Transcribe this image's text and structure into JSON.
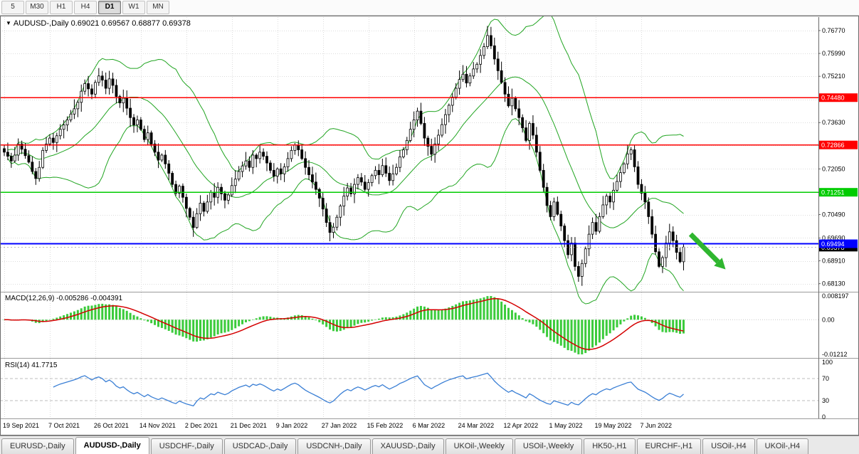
{
  "toolbar": {
    "timeframes": [
      "5",
      "M30",
      "H1",
      "H4",
      "D1",
      "W1",
      "MN"
    ],
    "active": "D1"
  },
  "chart_data": {
    "type": "candlestick",
    "symbol": "AUDUSD-,Daily",
    "ohlc_line": "0.69021 0.69567 0.68877 0.69378",
    "x_labels": [
      "19 Sep 2021",
      "7 Oct 2021",
      "26 Oct 2021",
      "14 Nov 2021",
      "2 Dec 2021",
      "21 Dec 2021",
      "9 Jan 2022",
      "27 Jan 2022",
      "15 Feb 2022",
      "6 Mar 2022",
      "24 Mar 2022",
      "12 Apr 2022",
      "1 May 2022",
      "19 May 2022",
      "7 Jun 2022"
    ],
    "candles_per_label": 13,
    "y_ticks": [
      "0.76770",
      "0.75990",
      "0.75210",
      "0.74410",
      "0.73630",
      "0.72850",
      "0.72050",
      "0.71250",
      "0.70490",
      "0.69690",
      "0.68910",
      "0.68130"
    ],
    "y_range": [
      0.6788,
      0.7723
    ],
    "closes": [
      0.7262,
      0.7248,
      0.7232,
      0.7252,
      0.729,
      0.7272,
      0.725,
      0.7228,
      0.7196,
      0.7172,
      0.721,
      0.7268,
      0.729,
      0.731,
      0.7295,
      0.7318,
      0.734,
      0.7355,
      0.7372,
      0.7392,
      0.741,
      0.7432,
      0.747,
      0.7496,
      0.7478,
      0.746,
      0.75,
      0.7522,
      0.7508,
      0.748,
      0.7512,
      0.749,
      0.7452,
      0.743,
      0.7446,
      0.7412,
      0.738,
      0.7355,
      0.7372,
      0.734,
      0.7305,
      0.7328,
      0.729,
      0.7262,
      0.7235,
      0.7252,
      0.7222,
      0.719,
      0.7152,
      0.7122,
      0.7146,
      0.7108,
      0.707,
      0.704,
      0.7005,
      0.7052,
      0.7088,
      0.706,
      0.7092,
      0.7125,
      0.7108,
      0.7142,
      0.712,
      0.7098,
      0.7116,
      0.7148,
      0.717,
      0.7196,
      0.7215,
      0.7232,
      0.721,
      0.7252,
      0.724,
      0.7262,
      0.7248,
      0.7225,
      0.72,
      0.718,
      0.7205,
      0.7188,
      0.7212,
      0.724,
      0.7268,
      0.7286,
      0.727,
      0.724,
      0.721,
      0.7185,
      0.716,
      0.7135,
      0.7105,
      0.7068,
      0.7022,
      0.6988,
      0.7006,
      0.704,
      0.7078,
      0.7112,
      0.714,
      0.712,
      0.7152,
      0.7175,
      0.716,
      0.7135,
      0.7158,
      0.7182,
      0.72,
      0.7185,
      0.7216,
      0.719,
      0.7165,
      0.7188,
      0.721,
      0.7246,
      0.727,
      0.7302,
      0.734,
      0.7372,
      0.7402,
      0.736,
      0.731,
      0.7282,
      0.7255,
      0.729,
      0.732,
      0.7356,
      0.739,
      0.7422,
      0.745,
      0.748,
      0.751,
      0.7528,
      0.7498,
      0.7522,
      0.7546,
      0.7562,
      0.7592,
      0.7622,
      0.766,
      0.7625,
      0.758,
      0.754,
      0.75,
      0.746,
      0.742,
      0.7446,
      0.741,
      0.738,
      0.7345,
      0.7302,
      0.736,
      0.732,
      0.7262,
      0.72,
      0.7142,
      0.708,
      0.7042,
      0.7092,
      0.705,
      0.701,
      0.696,
      0.6912,
      0.6952,
      0.6872,
      0.6838,
      0.6882,
      0.6932,
      0.6982,
      0.7022,
      0.6992,
      0.7042,
      0.7082,
      0.7112,
      0.7092,
      0.7132,
      0.7162,
      0.7192,
      0.7222,
      0.7256,
      0.727,
      0.7212,
      0.7152,
      0.7122,
      0.7092,
      0.7042,
      0.6982,
      0.6922,
      0.6872,
      0.6902,
      0.6952,
      0.699,
      0.696,
      0.692,
      0.6888,
      0.6938
    ],
    "h_lines": [
      {
        "price": 0.7448,
        "label": "0.74480",
        "color": "#ff0000"
      },
      {
        "price": 0.72866,
        "label": "0.72866",
        "color": "#ff0000"
      },
      {
        "price": 0.71251,
        "label": "0.71251",
        "color": "#00cc00"
      },
      {
        "price": 0.69494,
        "label": "0.69494",
        "color": "#0000ff"
      }
    ],
    "bid": {
      "price": 0.69378,
      "label": "0.69378"
    },
    "bollinger": {
      "period": 20,
      "deviation": 2,
      "color": "#22a522"
    },
    "annotation": {
      "type": "arrow",
      "from_index": 196,
      "from_price": 0.6982,
      "to_index": 206,
      "to_price": 0.6862,
      "color": "#2fb62f"
    },
    "macd": {
      "label": "MACD(12,26,9)",
      "values_text": "-0.005286 -0.004391",
      "fast": 12,
      "slow": 26,
      "signal": 9,
      "axis_labels": [
        "0.008197",
        "0.00",
        "-0.01212"
      ],
      "hist_color": "#3bcb3b",
      "signal_color": "#d40000"
    },
    "rsi": {
      "label": "RSI(14)",
      "value_text": "41.7715",
      "period": 14,
      "axis_labels": [
        "100",
        "70",
        "30",
        "0"
      ],
      "levels": [
        70,
        30
      ],
      "color": "#3a7fd5"
    }
  },
  "tabs": {
    "items": [
      "EURUSD-,Daily",
      "AUDUSD-,Daily",
      "USDCHF-,Daily",
      "USDCAD-,Daily",
      "USDCNH-,Daily",
      "XAUUSD-,Daily",
      "UKOil-,Weekly",
      "USOil-,Weekly",
      "HK50-,H1",
      "EURCHF-,H1",
      "USOil-,H4",
      "UKOil-,H4"
    ],
    "active": "AUDUSD-,Daily"
  }
}
